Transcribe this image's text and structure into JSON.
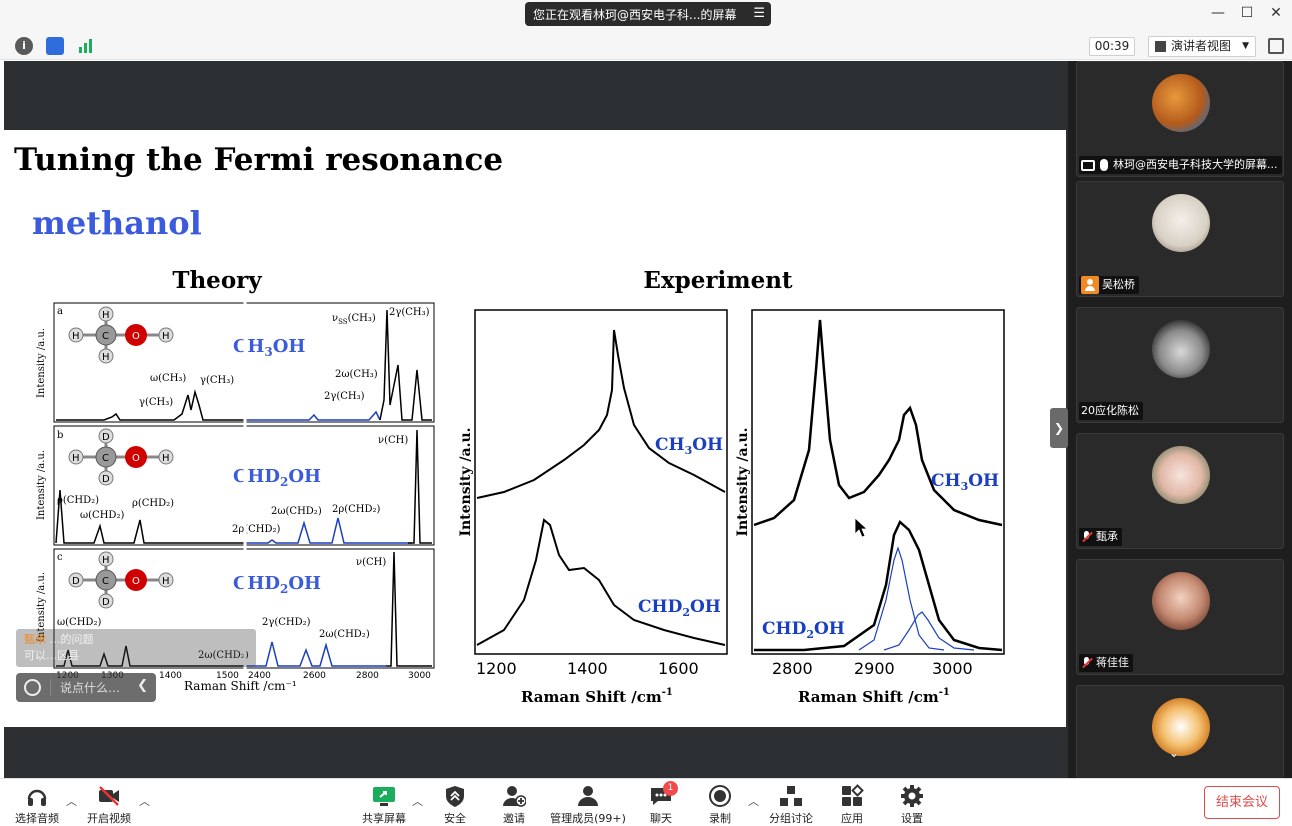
{
  "titlebar": {
    "share_status": "您正在观看林珂@西安电子科...的屏幕"
  },
  "infobar": {
    "timer": "00:39",
    "view_mode": "演讲者视图"
  },
  "slide": {
    "title": "Tuning the Fermi resonance",
    "subtitle": "methanol",
    "theory_heading": "Theory",
    "experiment_heading": "Experiment",
    "theory_panels": [
      {
        "letter": "a",
        "molecule": "CH3OH",
        "atoms": [
          "H",
          "H",
          "C",
          "O",
          "H",
          "H"
        ]
      },
      {
        "letter": "b",
        "molecule": "CHD2OH",
        "atoms": [
          "D",
          "H",
          "C",
          "O",
          "H",
          "D"
        ]
      },
      {
        "letter": "c",
        "molecule": "CHD2OH",
        "atoms": [
          "H",
          "D",
          "C",
          "O",
          "H",
          "D"
        ]
      }
    ],
    "theory_ylabel": "Intensity /a.u.",
    "theory_xlabel": "Raman Shift /cm⁻¹",
    "theory_xticks": [
      "1200",
      "1300",
      "1400",
      "1500",
      "2400",
      "2600",
      "2800",
      "3000"
    ],
    "exp_ylabel": "Intensity /a.u.",
    "exp_xlabel": "Raman Shift /cm",
    "exp_xlabel_sup": "-1",
    "exp_left_xticks": [
      "1200",
      "1400",
      "1600"
    ],
    "exp_right_xticks": [
      "2800",
      "2900",
      "3000"
    ],
    "exp_labels": [
      "CH3OH",
      "CHD2OH",
      "CH3OH",
      "CHD2OH"
    ]
  },
  "chat": {
    "toast_name": "甄承",
    "toast_line1": "…的问题",
    "toast_line2": "可以…区县",
    "placeholder": "说点什么…"
  },
  "participants": [
    {
      "name": "林珂@西安电子科技大学的屏幕...",
      "sharing": true
    },
    {
      "name": "吴松桥",
      "host_icon": true
    },
    {
      "name": "20应化陈松"
    },
    {
      "name": "甄承",
      "muted": true
    },
    {
      "name": "蒋佳佳",
      "muted": true
    },
    {
      "name": ""
    }
  ],
  "toolbar": {
    "audio": "选择音频",
    "video": "开启视频",
    "share": "共享屏幕",
    "security": "安全",
    "invite": "邀请",
    "members": "管理成员(99+)",
    "chat": "聊天",
    "chat_badge": "1",
    "record": "录制",
    "breakout": "分组讨论",
    "apps": "应用",
    "settings": "设置",
    "end": "结束会议"
  },
  "colors": {
    "accent_blue": "#3b5bdc",
    "end_red": "#e04b4b",
    "share_green": "#1aad5b"
  }
}
